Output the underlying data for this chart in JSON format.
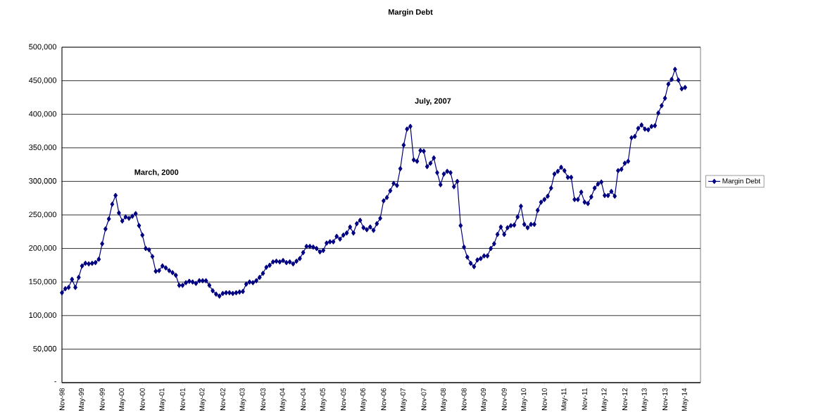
{
  "chart_data": {
    "type": "line",
    "title": "Margin Debt",
    "categories": [
      "Nov-98",
      null,
      null,
      null,
      null,
      null,
      "May-99",
      null,
      null,
      null,
      null,
      null,
      "Nov-99",
      null,
      null,
      null,
      null,
      null,
      "May-00",
      null,
      null,
      null,
      null,
      null,
      "Nov-00",
      null,
      null,
      null,
      null,
      null,
      "May-01",
      null,
      null,
      null,
      null,
      null,
      "Nov-01",
      null,
      null,
      null,
      null,
      null,
      "May-02",
      null,
      null,
      null,
      null,
      null,
      "Nov-02",
      null,
      null,
      null,
      null,
      null,
      "May-03",
      null,
      null,
      null,
      null,
      null,
      "Nov-03",
      null,
      null,
      null,
      null,
      null,
      "May-04",
      null,
      null,
      null,
      null,
      null,
      "Nov-04",
      null,
      null,
      null,
      null,
      null,
      "May-05",
      null,
      null,
      null,
      null,
      null,
      "Nov-05",
      null,
      null,
      null,
      null,
      null,
      "May-06",
      null,
      null,
      null,
      null,
      null,
      "Nov-06",
      null,
      null,
      null,
      null,
      null,
      "May-07",
      null,
      null,
      null,
      null,
      null,
      "Nov-07",
      null,
      null,
      null,
      null,
      null,
      "May-08",
      null,
      null,
      null,
      null,
      null,
      "Nov-08",
      null,
      null,
      null,
      null,
      null,
      "May-09",
      null,
      null,
      null,
      null,
      null,
      "Nov-09",
      null,
      null,
      null,
      null,
      null,
      "May-10",
      null,
      null,
      null,
      null,
      null,
      "Nov-10",
      null,
      null,
      null,
      null,
      null,
      "May-11",
      null,
      null,
      null,
      null,
      null,
      "Nov-11",
      null,
      null,
      null,
      null,
      null,
      "May-12",
      null,
      null,
      null,
      null,
      null,
      "Nov-12",
      null,
      null,
      null,
      null,
      null,
      "May-13",
      null,
      null,
      null,
      null,
      null,
      "Nov-13",
      null,
      null,
      null,
      null,
      null,
      "May-14"
    ],
    "series": [
      {
        "name": "Margin Debt",
        "color": "#000080",
        "values": [
          134000,
          140000,
          142000,
          154000,
          142000,
          157000,
          174000,
          178000,
          177000,
          178000,
          179000,
          184000,
          207000,
          229000,
          244000,
          266000,
          279000,
          253000,
          241000,
          247000,
          245000,
          248000,
          252000,
          234000,
          220000,
          200000,
          198000,
          188000,
          166000,
          167000,
          174000,
          171000,
          167000,
          164000,
          160000,
          145000,
          145000,
          149000,
          151000,
          150000,
          148000,
          152000,
          152000,
          152000,
          145000,
          137000,
          132000,
          129000,
          133000,
          134000,
          134000,
          133000,
          134000,
          135000,
          136000,
          147000,
          150000,
          149000,
          152000,
          157000,
          163000,
          172000,
          175000,
          180000,
          181000,
          180000,
          182000,
          179000,
          180000,
          177000,
          181000,
          185000,
          194000,
          203000,
          203000,
          202000,
          200000,
          195000,
          197000,
          208000,
          210000,
          210000,
          218000,
          214000,
          220000,
          223000,
          232000,
          223000,
          237000,
          242000,
          231000,
          228000,
          232000,
          227000,
          237000,
          245000,
          271000,
          276000,
          286000,
          297000,
          294000,
          319000,
          354000,
          378000,
          382000,
          332000,
          330000,
          346000,
          345000,
          322000,
          327000,
          335000,
          313000,
          295000,
          311000,
          315000,
          313000,
          292000,
          300000,
          234000,
          202000,
          187000,
          178000,
          173000,
          183000,
          185000,
          189000,
          189000,
          200000,
          207000,
          221000,
          232000,
          221000,
          231000,
          234000,
          235000,
          247000,
          263000,
          236000,
          231000,
          236000,
          236000,
          257000,
          269000,
          273000,
          278000,
          290000,
          311000,
          315000,
          321000,
          316000,
          306000,
          306000,
          273000,
          273000,
          284000,
          269000,
          267000,
          277000,
          290000,
          296000,
          299000,
          279000,
          279000,
          285000,
          278000,
          316000,
          318000,
          327000,
          330000,
          365000,
          367000,
          379000,
          384000,
          378000,
          377000,
          382000,
          383000,
          402000,
          413000,
          424000,
          445000,
          452000,
          467000,
          451000,
          438000,
          440000
        ]
      }
    ],
    "ylim": [
      0,
      500000
    ],
    "yticks": [
      {
        "value": 0,
        "label": "-"
      },
      {
        "value": 50000,
        "label": "50,000"
      },
      {
        "value": 100000,
        "label": "100,000"
      },
      {
        "value": 150000,
        "label": "150,000"
      },
      {
        "value": 200000,
        "label": "200,000"
      },
      {
        "value": 250000,
        "label": "250,000"
      },
      {
        "value": 300000,
        "label": "300,000"
      },
      {
        "value": 350000,
        "label": "350,000"
      },
      {
        "value": 400000,
        "label": "400,000"
      },
      {
        "value": 450000,
        "label": "450,000"
      },
      {
        "value": 500000,
        "label": "500,000"
      }
    ],
    "annotations": [
      "March, 2000",
      "July, 2007"
    ],
    "grid": "y",
    "legend": "right",
    "marker": "diamond",
    "line_style": "solid"
  }
}
